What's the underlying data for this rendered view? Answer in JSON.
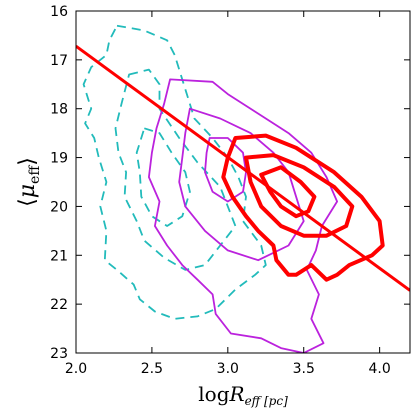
{
  "chart_data": {
    "type": "contour",
    "xlabel": {
      "main": "log",
      "var": "R",
      "sub": "eff [pc]"
    },
    "ylabel": {
      "open": "⟨",
      "var": "μ",
      "sub": "eff",
      "close": "⟩"
    },
    "xlim": [
      2.0,
      4.2
    ],
    "ylim": [
      23,
      16
    ],
    "y_inverted": true,
    "xticks": [
      "2.0",
      "2.5",
      "3.0",
      "3.5",
      "4.0"
    ],
    "xtick_values": [
      2.0,
      2.5,
      3.0,
      3.5,
      4.0
    ],
    "yticks": [
      "16",
      "17",
      "18",
      "19",
      "20",
      "21",
      "22",
      "23"
    ],
    "ytick_values": [
      16,
      17,
      18,
      19,
      20,
      21,
      22,
      23
    ],
    "fit_line": {
      "color": "#ff0000",
      "points": [
        [
          2.0,
          16.72
        ],
        [
          4.2,
          21.72
        ]
      ]
    },
    "series": [
      {
        "color": "#22bbbb",
        "style": "dashed",
        "contours": [
          [
            [
              2.27,
              16.3
            ],
            [
              2.45,
              16.4
            ],
            [
              2.6,
              16.6
            ],
            [
              2.65,
              16.9
            ],
            [
              2.72,
              17.6
            ],
            [
              2.78,
              18.2
            ],
            [
              2.9,
              18.6
            ],
            [
              3.0,
              19.0
            ],
            [
              3.07,
              19.4
            ],
            [
              3.12,
              19.8
            ],
            [
              3.1,
              20.3
            ],
            [
              3.22,
              20.8
            ],
            [
              3.25,
              21.2
            ],
            [
              3.18,
              21.4
            ],
            [
              3.05,
              21.7
            ],
            [
              2.92,
              22.1
            ],
            [
              2.8,
              22.25
            ],
            [
              2.65,
              22.3
            ],
            [
              2.52,
              22.15
            ],
            [
              2.42,
              21.9
            ],
            [
              2.38,
              21.6
            ],
            [
              2.27,
              21.3
            ],
            [
              2.19,
              21.1
            ],
            [
              2.2,
              20.5
            ],
            [
              2.16,
              20.0
            ],
            [
              2.2,
              19.5
            ],
            [
              2.15,
              19.0
            ],
            [
              2.12,
              18.6
            ],
            [
              2.06,
              18.3
            ],
            [
              2.1,
              18.0
            ],
            [
              2.05,
              17.5
            ],
            [
              2.1,
              17.15
            ],
            [
              2.2,
              16.9
            ],
            [
              2.22,
              16.6
            ],
            [
              2.27,
              16.3
            ]
          ],
          [
            [
              2.35,
              17.3
            ],
            [
              2.48,
              17.2
            ],
            [
              2.55,
              17.5
            ],
            [
              2.55,
              18.0
            ],
            [
              2.68,
              18.6
            ],
            [
              2.8,
              19.1
            ],
            [
              2.95,
              19.6
            ],
            [
              3.0,
              20.0
            ],
            [
              3.05,
              20.4
            ],
            [
              2.95,
              20.8
            ],
            [
              2.85,
              21.2
            ],
            [
              2.72,
              21.3
            ],
            [
              2.58,
              21.05
            ],
            [
              2.45,
              20.7
            ],
            [
              2.4,
              20.3
            ],
            [
              2.32,
              19.8
            ],
            [
              2.33,
              19.3
            ],
            [
              2.28,
              18.9
            ],
            [
              2.26,
              18.4
            ],
            [
              2.3,
              17.9
            ],
            [
              2.35,
              17.3
            ]
          ],
          [
            [
              2.45,
              18.4
            ],
            [
              2.55,
              18.5
            ],
            [
              2.63,
              18.9
            ],
            [
              2.72,
              19.3
            ],
            [
              2.75,
              19.7
            ],
            [
              2.7,
              20.2
            ],
            [
              2.6,
              20.4
            ],
            [
              2.5,
              20.2
            ],
            [
              2.43,
              19.8
            ],
            [
              2.42,
              19.3
            ],
            [
              2.4,
              18.9
            ],
            [
              2.45,
              18.4
            ]
          ]
        ]
      },
      {
        "color": "#bb22dd",
        "style": "solid",
        "contours": [
          [
            [
              2.62,
              17.4
            ],
            [
              2.9,
              17.45
            ],
            [
              3.0,
              17.7
            ],
            [
              3.2,
              18.1
            ],
            [
              3.4,
              18.5
            ],
            [
              3.55,
              18.9
            ],
            [
              3.65,
              19.4
            ],
            [
              3.72,
              19.9
            ],
            [
              3.62,
              20.4
            ],
            [
              3.58,
              20.9
            ],
            [
              3.52,
              21.3
            ],
            [
              3.6,
              21.8
            ],
            [
              3.55,
              22.3
            ],
            [
              3.63,
              22.8
            ],
            [
              3.5,
              23.0
            ],
            [
              3.35,
              22.9
            ],
            [
              3.22,
              22.7
            ],
            [
              3.02,
              22.6
            ],
            [
              2.92,
              22.2
            ],
            [
              2.9,
              21.8
            ],
            [
              2.8,
              21.5
            ],
            [
              2.7,
              21.2
            ],
            [
              2.6,
              20.8
            ],
            [
              2.52,
              20.4
            ],
            [
              2.55,
              19.9
            ],
            [
              2.48,
              19.4
            ],
            [
              2.5,
              18.9
            ],
            [
              2.53,
              18.4
            ],
            [
              2.58,
              17.9
            ],
            [
              2.62,
              17.4
            ]
          ],
          [
            [
              2.75,
              18.0
            ],
            [
              2.95,
              18.2
            ],
            [
              3.15,
              18.5
            ],
            [
              3.3,
              18.9
            ],
            [
              3.4,
              19.3
            ],
            [
              3.45,
              19.8
            ],
            [
              3.5,
              20.3
            ],
            [
              3.4,
              20.8
            ],
            [
              3.2,
              21.1
            ],
            [
              3.0,
              20.9
            ],
            [
              2.85,
              20.5
            ],
            [
              2.72,
              20.0
            ],
            [
              2.68,
              19.5
            ],
            [
              2.7,
              19.0
            ],
            [
              2.72,
              18.5
            ],
            [
              2.75,
              18.0
            ]
          ],
          [
            [
              2.88,
              18.6
            ],
            [
              3.0,
              18.6
            ],
            [
              3.1,
              18.9
            ],
            [
              3.12,
              19.3
            ],
            [
              3.1,
              19.7
            ],
            [
              3.0,
              19.9
            ],
            [
              2.9,
              19.7
            ],
            [
              2.85,
              19.3
            ],
            [
              2.86,
              18.9
            ],
            [
              2.88,
              18.6
            ]
          ]
        ]
      },
      {
        "color": "#ff0000",
        "style": "solid-thick",
        "contours": [
          [
            [
              2.97,
              19.4
            ],
            [
              3.0,
              19.0
            ],
            [
              3.05,
              18.6
            ],
            [
              3.25,
              18.55
            ],
            [
              3.45,
              18.8
            ],
            [
              3.7,
              19.3
            ],
            [
              3.88,
              19.8
            ],
            [
              4.0,
              20.3
            ],
            [
              4.02,
              20.8
            ],
            [
              3.95,
              21.0
            ],
            [
              3.8,
              21.2
            ],
            [
              3.72,
              21.4
            ],
            [
              3.65,
              21.5
            ],
            [
              3.55,
              21.2
            ],
            [
              3.45,
              21.4
            ],
            [
              3.4,
              21.4
            ],
            [
              3.32,
              21.1
            ],
            [
              3.3,
              20.8
            ],
            [
              3.2,
              20.5
            ],
            [
              3.12,
              20.2
            ],
            [
              3.03,
              19.8
            ],
            [
              2.97,
              19.4
            ]
          ],
          [
            [
              3.12,
              19.0
            ],
            [
              3.3,
              18.95
            ],
            [
              3.5,
              19.2
            ],
            [
              3.7,
              19.6
            ],
            [
              3.82,
              20.0
            ],
            [
              3.78,
              20.4
            ],
            [
              3.65,
              20.6
            ],
            [
              3.5,
              20.6
            ],
            [
              3.35,
              20.4
            ],
            [
              3.22,
              20.0
            ],
            [
              3.15,
              19.5
            ],
            [
              3.12,
              19.0
            ]
          ],
          [
            [
              3.22,
              19.35
            ],
            [
              3.35,
              19.2
            ],
            [
              3.48,
              19.5
            ],
            [
              3.57,
              19.8
            ],
            [
              3.53,
              20.1
            ],
            [
              3.45,
              20.2
            ],
            [
              3.35,
              20.0
            ],
            [
              3.28,
              19.7
            ],
            [
              3.22,
              19.35
            ]
          ]
        ]
      }
    ]
  }
}
